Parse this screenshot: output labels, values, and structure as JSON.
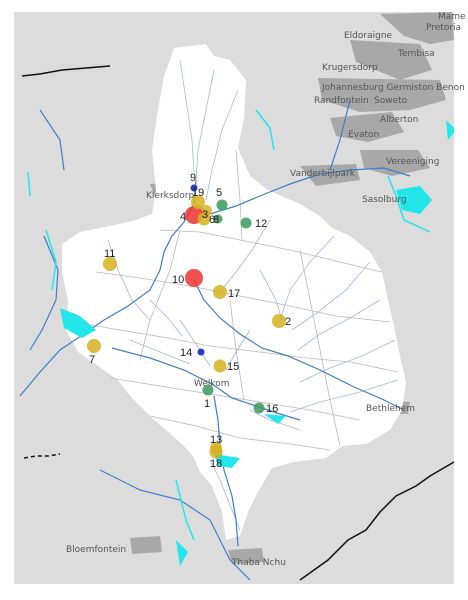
{
  "map": {
    "colors": {
      "background_land": "#dcdcdc",
      "catchment": "#ffffff",
      "river": "#3f7ec4",
      "river_minor": "#9fb9dc",
      "water": "#22e6ea",
      "border": "#111111",
      "subbasin": "#b8b8b8",
      "urban": "#a8a8a8",
      "marker_red": "#f03030",
      "marker_yellow": "#d6b21e",
      "marker_green": "#3a9a5c",
      "marker_blue": "#1f2fc0"
    },
    "places": [
      {
        "id": "mame",
        "label": "Mame"
      },
      {
        "id": "pretoria",
        "label": "Pretoria"
      },
      {
        "id": "eldoraigne",
        "label": "Eldoraigne"
      },
      {
        "id": "tembisa",
        "label": "Tembisa"
      },
      {
        "id": "krugersdorp",
        "label": "Krugersdorp"
      },
      {
        "id": "johannesburg",
        "label": "Johannesburg Germiston Benon"
      },
      {
        "id": "randfontein",
        "label": "Randfontein"
      },
      {
        "id": "soweto",
        "label": "Soweto"
      },
      {
        "id": "alberton",
        "label": "Alberton"
      },
      {
        "id": "evaton",
        "label": "Evaton"
      },
      {
        "id": "vereeniging",
        "label": "Vereeniging"
      },
      {
        "id": "vanderbijlpark",
        "label": "Vanderbijlpark"
      },
      {
        "id": "sasolburg",
        "label": "Sasolburg"
      },
      {
        "id": "klerksdorp",
        "label": "Klerksdorp"
      },
      {
        "id": "welkom",
        "label": "Welkom"
      },
      {
        "id": "bethlehem",
        "label": "Bethlehem"
      },
      {
        "id": "bloemfontein",
        "label": "Bloemfontein"
      },
      {
        "id": "thaba_nchu",
        "label": "Thaba Nchu"
      }
    ],
    "sites": [
      {
        "id": "1",
        "label": "1",
        "color": "green"
      },
      {
        "id": "2",
        "label": "2",
        "color": "yellow"
      },
      {
        "id": "3",
        "label": "3",
        "color": "yellow"
      },
      {
        "id": "4",
        "label": "4",
        "color": "red"
      },
      {
        "id": "5",
        "label": "5",
        "color": "green"
      },
      {
        "id": "6",
        "label": "6",
        "color": "yellow"
      },
      {
        "id": "7",
        "label": "7",
        "color": "yellow"
      },
      {
        "id": "8",
        "label": "8",
        "color": "green"
      },
      {
        "id": "9",
        "label": "9",
        "color": "blue"
      },
      {
        "id": "10",
        "label": "10",
        "color": "red"
      },
      {
        "id": "11",
        "label": "11",
        "color": "yellow"
      },
      {
        "id": "12",
        "label": "12",
        "color": "green"
      },
      {
        "id": "13",
        "label": "13",
        "color": "yellow"
      },
      {
        "id": "14",
        "label": "14",
        "color": "blue"
      },
      {
        "id": "15",
        "label": "15",
        "color": "yellow"
      },
      {
        "id": "16",
        "label": "16",
        "color": "green"
      },
      {
        "id": "17",
        "label": "17",
        "color": "yellow"
      },
      {
        "id": "18",
        "label": "18",
        "color": "yellow"
      },
      {
        "id": "19",
        "label": "19",
        "color": "yellow"
      }
    ]
  }
}
